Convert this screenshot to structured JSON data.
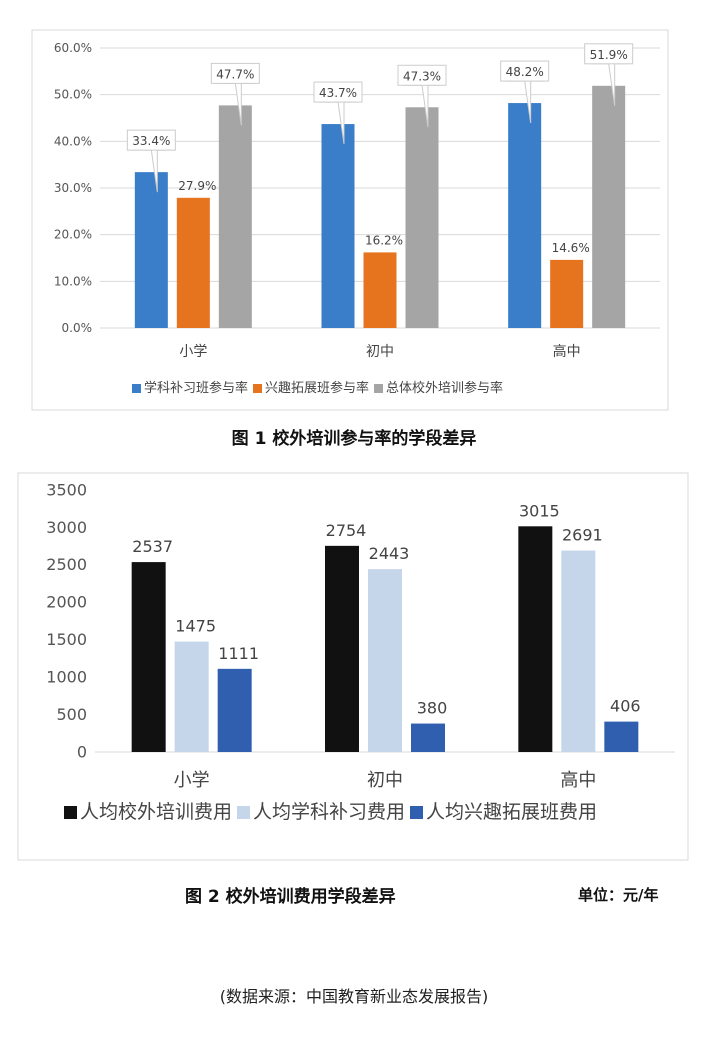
{
  "chart_data": [
    {
      "type": "bar",
      "title": "图 1  校外培训参与率的学段差异",
      "categories": [
        "小学",
        "初中",
        "高中"
      ],
      "ylim": [
        0,
        60
      ],
      "yticks": [
        "0.0%",
        "10.0%",
        "20.0%",
        "30.0%",
        "40.0%",
        "50.0%",
        "60.0%"
      ],
      "grid": true,
      "legend_placement": "bottom",
      "series": [
        {
          "name": "学科补习班参与率",
          "color": "#3a7dc9",
          "values": [
            33.4,
            43.7,
            48.2
          ],
          "labels": [
            "33.4%",
            "43.7%",
            "48.2%"
          ],
          "callout": true
        },
        {
          "name": "兴趣拓展班参与率",
          "color": "#e6741f",
          "values": [
            27.9,
            16.2,
            14.6
          ],
          "labels": [
            "27.9%",
            "16.2%",
            "14.6%"
          ],
          "callout": false
        },
        {
          "name": "总体校外培训参与率",
          "color": "#a5a5a5",
          "values": [
            47.7,
            47.3,
            51.9
          ],
          "labels": [
            "47.7%",
            "47.3%",
            "51.9%"
          ],
          "callout": true
        }
      ]
    },
    {
      "type": "bar",
      "title": "图 2  校外培训费用学段差异",
      "unit": "单位：元/年",
      "categories": [
        "小学",
        "初中",
        "高中"
      ],
      "ylim": [
        0,
        3500
      ],
      "yticks": [
        "0",
        "500",
        "1000",
        "1500",
        "2000",
        "2500",
        "3000",
        "3500"
      ],
      "grid": false,
      "legend_placement": "bottom",
      "series": [
        {
          "name": "人均校外培训费用",
          "color": "#111111",
          "values": [
            2537,
            2754,
            3015
          ],
          "labels": [
            "2537",
            "2754",
            "3015"
          ]
        },
        {
          "name": "人均学科补习费用",
          "color": "#c5d5ea",
          "values": [
            1475,
            2443,
            2691
          ],
          "labels": [
            "1475",
            "2443",
            "2691"
          ]
        },
        {
          "name": "人均兴趣拓展班费用",
          "color": "#2f5fae",
          "values": [
            1111,
            380,
            406
          ],
          "labels": [
            "1111",
            "380",
            "406"
          ]
        }
      ]
    }
  ],
  "source_note": "(数据来源：中国教育新业态发展报告)"
}
